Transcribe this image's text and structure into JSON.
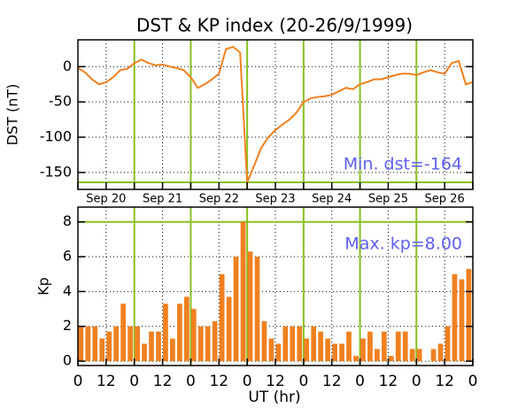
{
  "chart_data": [
    {
      "type": "line",
      "title": "DST & KP index (20-26/9/1999)",
      "ylabel": "DST (nT)",
      "x": [
        0,
        3,
        6,
        9,
        12,
        15,
        18,
        21,
        24,
        27,
        30,
        33,
        36,
        39,
        42,
        45,
        48,
        51,
        54,
        57,
        60,
        63,
        66,
        69,
        72,
        75,
        78,
        81,
        84,
        87,
        90,
        93,
        96,
        99,
        102,
        105,
        108,
        111,
        114,
        117,
        120,
        123,
        126,
        129,
        132,
        135,
        138,
        141,
        144,
        147,
        150,
        153,
        156,
        159,
        162,
        165,
        168
      ],
      "values": [
        -2,
        -8,
        -18,
        -25,
        -22,
        -15,
        -5,
        -3,
        5,
        10,
        5,
        2,
        3,
        0,
        -2,
        -5,
        -15,
        -30,
        -25,
        -18,
        -10,
        25,
        28,
        20,
        -164,
        -140,
        -115,
        -100,
        -90,
        -82,
        -75,
        -65,
        -50,
        -45,
        -43,
        -42,
        -40,
        -35,
        -30,
        -32,
        -25,
        -22,
        -18,
        -18,
        -15,
        -12,
        -10,
        -10,
        -12,
        -8,
        -5,
        -8,
        -10,
        5,
        8,
        -25,
        -22
      ],
      "color": "#f08020",
      "xlim": [
        0,
        168
      ],
      "ylim": [
        -174,
        38
      ],
      "yticks": [
        -150,
        -100,
        -50,
        0
      ],
      "hline": -164,
      "vlines": [
        24,
        48,
        72,
        96,
        120,
        144
      ],
      "ref_color": "#88c020",
      "annotation": "Min. dst=-164",
      "annotation_color": "#6060f0",
      "date_labels": [
        "Sep 20",
        "Sep 21",
        "Sep 22",
        "Sep 23",
        "Sep 24",
        "Sep 25",
        "Sep 26"
      ],
      "grid": true
    },
    {
      "type": "bar",
      "ylabel": "Kp",
      "xlabel": "UT (hr)",
      "x": [
        0,
        3,
        6,
        9,
        12,
        15,
        18,
        21,
        24,
        27,
        30,
        33,
        36,
        39,
        42,
        45,
        48,
        51,
        54,
        57,
        60,
        63,
        66,
        69,
        72,
        75,
        78,
        81,
        84,
        87,
        90,
        93,
        96,
        99,
        102,
        105,
        108,
        111,
        114,
        117,
        120,
        123,
        126,
        129,
        132,
        135,
        138,
        141,
        144,
        147,
        150,
        153,
        156,
        159,
        162,
        165
      ],
      "values": [
        2,
        2,
        2,
        1.3,
        1.7,
        2,
        3.3,
        2,
        2,
        1,
        1.7,
        1.7,
        3.3,
        1.3,
        3.3,
        3.7,
        3,
        2,
        2,
        2.3,
        5,
        3.7,
        6,
        8,
        6.3,
        6,
        2.3,
        1.3,
        1,
        2,
        2,
        2,
        1.3,
        2,
        1.7,
        1.3,
        1,
        1,
        1.7,
        0.3,
        1.3,
        1.7,
        0.7,
        1.7,
        0.3,
        1.7,
        1.7,
        0.7,
        0.7,
        0,
        0.7,
        1,
        2,
        5,
        4.7,
        5.3
      ],
      "color": "#f08020",
      "xlim": [
        0,
        168
      ],
      "ylim": [
        -0.25,
        8.85
      ],
      "yticks": [
        0,
        2,
        4,
        6,
        8
      ],
      "xticks": [
        0,
        12,
        {
          "value": 24,
          "label": "0"
        },
        {
          "value": 36,
          "label": "12"
        },
        {
          "value": 48,
          "label": "0"
        },
        {
          "value": 60,
          "label": "12"
        },
        {
          "value": 72,
          "label": "0"
        },
        {
          "value": 84,
          "label": "12"
        },
        {
          "value": 96,
          "label": "0"
        },
        {
          "value": 108,
          "label": "12"
        },
        {
          "value": 120,
          "label": "0"
        },
        {
          "value": 132,
          "label": "12"
        },
        {
          "value": 144,
          "label": "0"
        },
        {
          "value": 156,
          "label": "12"
        },
        {
          "value": 168,
          "label": "0"
        }
      ],
      "hline": 8,
      "vlines": [
        24,
        48,
        72,
        96,
        120,
        144
      ],
      "ref_color": "#88c020",
      "annotation": "Max. kp=8.00",
      "annotation_color": "#6060f0",
      "grid": true
    }
  ]
}
